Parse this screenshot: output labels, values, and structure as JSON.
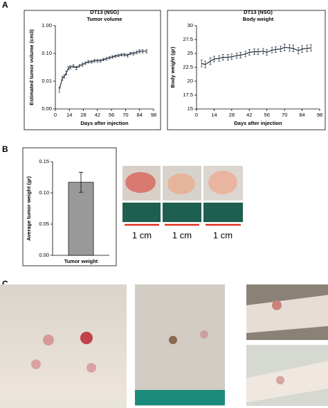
{
  "panels": [
    "A",
    "B",
    "C"
  ],
  "scale_labels": [
    "1 cm",
    "1 cm",
    "1 cm"
  ],
  "chart_data": [
    {
      "type": "line",
      "title": "DT13 (NSG)",
      "subtitle": "Tumor volume",
      "x_label": "Days after injection",
      "y_label": "Estimated tumor volume (cm3)",
      "log_scale": true,
      "color": "#1f2d3d",
      "x": [
        4,
        7,
        9,
        11,
        13,
        15,
        18,
        21,
        24,
        27,
        30,
        33,
        36,
        39,
        42,
        45,
        48,
        51,
        54,
        57,
        60,
        63,
        66,
        69,
        72,
        75,
        78,
        81,
        84,
        87,
        91
      ],
      "values": [
        0.005,
        0.013,
        0.015,
        0.02,
        0.03,
        0.032,
        0.035,
        0.03,
        0.036,
        0.04,
        0.045,
        0.05,
        0.05,
        0.055,
        0.055,
        0.055,
        0.06,
        0.065,
        0.07,
        0.075,
        0.08,
        0.085,
        0.09,
        0.09,
        0.085,
        0.1,
        0.1,
        0.11,
        0.12,
        0.12,
        0.12
      ],
      "errors": [
        0.001,
        0.002,
        0.002,
        0.003,
        0.004,
        0.004,
        0.004,
        0.004,
        0.004,
        0.005,
        0.005,
        0.005,
        0.005,
        0.006,
        0.006,
        0.006,
        0.006,
        0.007,
        0.007,
        0.008,
        0.008,
        0.009,
        0.009,
        0.01,
        0.01,
        0.01,
        0.012,
        0.012,
        0.015,
        0.015,
        0.015
      ],
      "xlim": [
        0,
        98
      ],
      "xticks": [
        0,
        14,
        28,
        42,
        56,
        70,
        84,
        98
      ],
      "ylim": [
        0.001,
        1
      ],
      "yticks": [
        {
          "value": 0.001,
          "label": "0.00"
        },
        0.01,
        {
          "value": 0.1,
          "label": "0.10"
        },
        {
          "value": 1,
          "label": "1.00"
        }
      ]
    },
    {
      "type": "line",
      "title": "DT13 (NSG)",
      "subtitle": "Body weight",
      "x_label": "Days after injection",
      "y_label": "Body weight (gr)",
      "log_scale": false,
      "color": "#1f2d3d",
      "x": [
        4,
        7,
        11,
        14,
        18,
        21,
        25,
        28,
        32,
        35,
        39,
        42,
        46,
        49,
        53,
        56,
        60,
        63,
        67,
        70,
        74,
        77,
        81,
        84,
        88,
        91
      ],
      "values": [
        23.2,
        23.0,
        23.6,
        24.0,
        24.1,
        24.3,
        24.3,
        24.4,
        24.6,
        24.7,
        24.9,
        25.2,
        25.3,
        25.3,
        25.4,
        25.2,
        25.6,
        25.7,
        25.8,
        26.1,
        26.0,
        25.9,
        25.5,
        25.8,
        25.9,
        26.0
      ],
      "errors": [
        0.6,
        0.6,
        0.6,
        0.5,
        0.5,
        0.5,
        0.5,
        0.5,
        0.5,
        0.5,
        0.5,
        0.5,
        0.5,
        0.5,
        0.5,
        0.5,
        0.5,
        0.5,
        0.5,
        0.6,
        0.6,
        0.6,
        0.6,
        0.6,
        0.6,
        0.6
      ],
      "xlim": [
        0,
        98
      ],
      "xticks": [
        0,
        14,
        28,
        42,
        56,
        70,
        84,
        98
      ],
      "ylim": [
        15,
        30
      ],
      "yticks": [
        15,
        17.5,
        20,
        22.5,
        25,
        27.5,
        30
      ]
    },
    {
      "type": "bar",
      "y_label": "Average tumor weight (gr)",
      "color": "#999999",
      "categories": [
        "Tumor weight"
      ],
      "values": [
        0.117
      ],
      "errors": [
        0.016
      ],
      "ylim": [
        0,
        0.15
      ],
      "yticks": [
        {
          "value": 0,
          "label": "0.00"
        },
        0.05,
        {
          "value": 0.1,
          "label": "0.10"
        },
        0.15
      ]
    }
  ]
}
